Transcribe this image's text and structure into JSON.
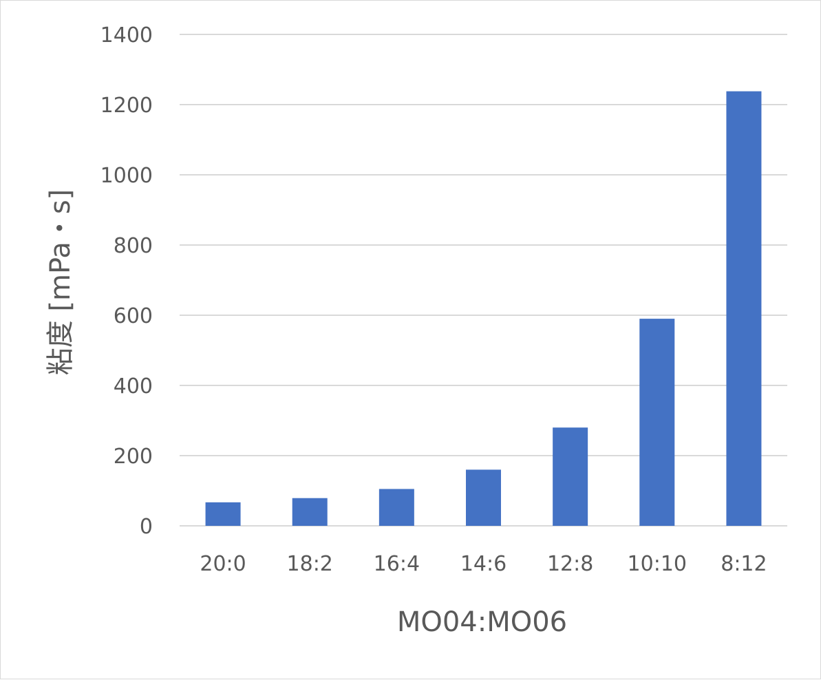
{
  "chart_data": {
    "type": "bar",
    "title": "",
    "xlabel": "MO04:MO06",
    "ylabel": "粘度 [mPa・s]",
    "categories": [
      "20:0",
      "18:2",
      "16:4",
      "14:6",
      "12:8",
      "10:10",
      "8:12"
    ],
    "values": [
      67,
      79,
      105,
      160,
      280,
      590,
      1238
    ],
    "ylim": [
      0,
      1400
    ],
    "yticks": [
      0,
      200,
      400,
      600,
      800,
      1000,
      1200,
      1400
    ],
    "grid": true,
    "legend": "none",
    "bar_color": "#4472c4"
  }
}
